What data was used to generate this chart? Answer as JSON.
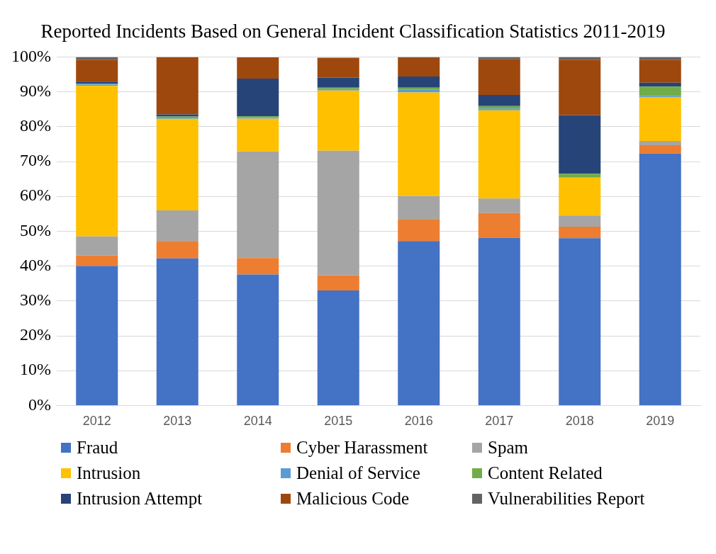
{
  "chart_data": {
    "type": "bar",
    "title": "Reported Incidents Based on General Incident Classification Statistics 2011-2019",
    "categories": [
      "2012",
      "2013",
      "2014",
      "2015",
      "2016",
      "2017",
      "2018",
      "2019"
    ],
    "stacked": true,
    "series": [
      {
        "name": "Fraud",
        "color": "#4472c4",
        "values": [
          40,
          42.2,
          37.6,
          33.0,
          47.2,
          48.1,
          48.0,
          72.3
        ]
      },
      {
        "name": "Cyber Harassment",
        "color": "#ed7d31",
        "values": [
          3,
          5,
          4.7,
          4.4,
          6.3,
          7.1,
          3.3,
          2.4
        ]
      },
      {
        "name": "Spam",
        "color": "#a5a5a5",
        "values": [
          5.5,
          8.8,
          30.6,
          35.7,
          6.6,
          4.2,
          3.2,
          1.2
        ]
      },
      {
        "name": "Intrusion",
        "color": "#ffc000",
        "values": [
          43.2,
          26.1,
          9.4,
          17.3,
          29.7,
          25.3,
          10.9,
          12.6
        ]
      },
      {
        "name": "Denial of Service",
        "color": "#5b9bd5",
        "values": [
          0.4,
          0.2,
          0.4,
          0.4,
          0.8,
          0.5,
          0,
          0.3
        ]
      },
      {
        "name": "Content Related",
        "color": "#70ad47",
        "values": [
          0.2,
          0.6,
          0.3,
          0.4,
          0.6,
          0.7,
          1.1,
          2.7
        ]
      },
      {
        "name": "Intrusion Attempt",
        "color": "#264478",
        "values": [
          0.6,
          0.6,
          10.8,
          2.9,
          3.2,
          3.2,
          16.8,
          1.1
        ]
      },
      {
        "name": "Malicious Code",
        "color": "#9e480e",
        "values": [
          6.3,
          16.5,
          6.1,
          5.7,
          5.3,
          10.3,
          15.9,
          6.6
        ]
      },
      {
        "name": "Vulnerabilities Report",
        "color": "#636363",
        "values": [
          0.8,
          0,
          null,
          null,
          0.3,
          0.6,
          0.8,
          0.8
        ]
      }
    ],
    "ylim": [
      0,
      100
    ],
    "yticks": [
      {
        "value": 0,
        "label": "0%"
      },
      {
        "value": 10,
        "label": "10%"
      },
      {
        "value": 20,
        "label": "20%"
      },
      {
        "value": 30,
        "label": "30%"
      },
      {
        "value": 40,
        "label": "40%"
      },
      {
        "value": 50,
        "label": "50%"
      },
      {
        "value": 60,
        "label": "60%"
      },
      {
        "value": 70,
        "label": "70%"
      },
      {
        "value": 80,
        "label": "80%"
      },
      {
        "value": 90,
        "label": "90%"
      },
      {
        "value": 100,
        "label": "100%"
      }
    ],
    "grid": "y",
    "legend": "bottom"
  }
}
